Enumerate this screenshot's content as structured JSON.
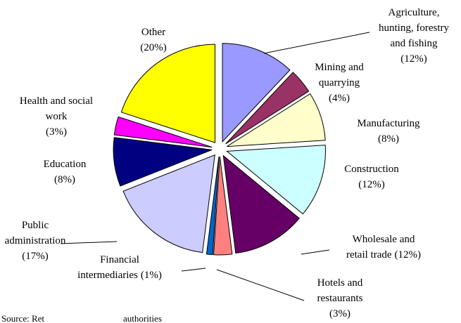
{
  "chart_data": {
    "type": "pie",
    "categories": [
      "Agriculture, hunting, forestry and fishing",
      "Mining and quarrying",
      "Manufacturing",
      "Construction",
      "Wholesale and retail trade",
      "Hotels and restaurants",
      "Financial intermediaries",
      "Public administration",
      "Education",
      "Health and social work",
      "Other"
    ],
    "values": [
      12,
      4,
      8,
      12,
      12,
      3,
      1,
      17,
      8,
      3,
      20
    ],
    "value_labels": [
      "(12%)",
      "(4%)",
      "(8%)",
      "(12%)",
      "(12%)",
      "(3%)",
      "(1%)",
      "(17%)",
      "(8%)",
      "(3%)",
      "(20%)"
    ],
    "colors": [
      "#9999ff",
      "#993366",
      "#ffffcc",
      "#ccffff",
      "#660066",
      "#ff8080",
      "#0066cc",
      "#ccccff",
      "#000080",
      "#ff00ff",
      "#ffff00"
    ],
    "source": [
      "Source: Ret",
      "authorities"
    ]
  }
}
